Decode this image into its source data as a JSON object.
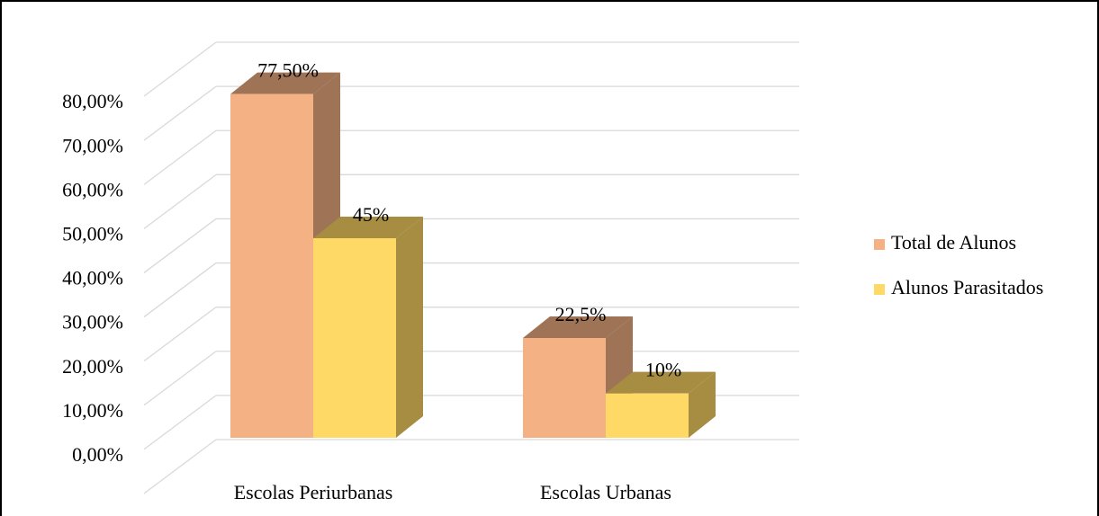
{
  "chart_data": {
    "type": "bar3d",
    "categories": [
      "Escolas Periurbanas",
      "Escolas Urbanas"
    ],
    "series": [
      {
        "name": "Total de Alunos",
        "color": "#F4B183",
        "values": [
          77.5,
          22.5
        ],
        "value_labels": [
          "77,50%",
          "22,5%"
        ]
      },
      {
        "name": "Alunos Parasitados",
        "color": "#FFD966",
        "values": [
          45,
          10
        ],
        "value_labels": [
          "45%",
          "10%"
        ]
      }
    ],
    "ylim": [
      0,
      90
    ],
    "yticks": [
      {
        "value": 0,
        "label": "0,00%"
      },
      {
        "value": 10,
        "label": "10,00%"
      },
      {
        "value": 20,
        "label": "20,00%"
      },
      {
        "value": 30,
        "label": "30,00%"
      },
      {
        "value": 40,
        "label": "40,00%"
      },
      {
        "value": 50,
        "label": "50,00%"
      },
      {
        "value": 60,
        "label": "60,00%"
      },
      {
        "value": 70,
        "label": "70,00%"
      },
      {
        "value": 80,
        "label": "80,00%"
      }
    ],
    "grid": true,
    "legend": "right"
  }
}
